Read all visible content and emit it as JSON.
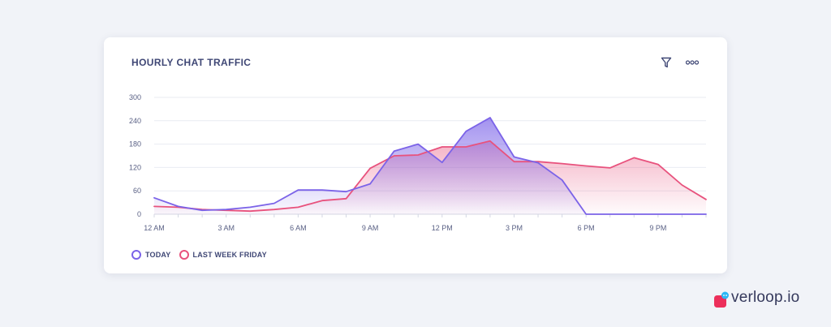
{
  "card": {
    "title": "HOURLY CHAT TRAFFIC",
    "toolbar": {
      "filter_icon": "filter-icon",
      "more_icon": "more-horizontal-icon"
    }
  },
  "chart_data": {
    "type": "area",
    "title": "HOURLY CHAT TRAFFIC",
    "xlabel": "",
    "ylabel": "",
    "ylim": [
      0,
      300
    ],
    "xlim": [
      0,
      23
    ],
    "y_ticks": [
      0,
      60,
      120,
      180,
      240,
      300
    ],
    "x_ticks": [
      {
        "x": 0,
        "label": "12 AM"
      },
      {
        "x": 3,
        "label": "3 AM"
      },
      {
        "x": 6,
        "label": "6 AM"
      },
      {
        "x": 9,
        "label": "9 AM"
      },
      {
        "x": 12,
        "label": "12 PM"
      },
      {
        "x": 15,
        "label": "3 PM"
      },
      {
        "x": 18,
        "label": "6 PM"
      },
      {
        "x": 21,
        "label": "9 PM"
      }
    ],
    "x": [
      0,
      1,
      2,
      3,
      4,
      5,
      6,
      7,
      8,
      9,
      10,
      11,
      12,
      13,
      14,
      15,
      16,
      17,
      18,
      19,
      20,
      21,
      22,
      23
    ],
    "grid": true,
    "legend_position": "bottom-left",
    "series": [
      {
        "name": "LAST WEEK FRIDAY",
        "color": "#e8527d",
        "values": [
          20,
          18,
          12,
          10,
          8,
          12,
          18,
          35,
          40,
          118,
          150,
          152,
          173,
          173,
          188,
          135,
          135,
          130,
          124,
          119,
          145,
          128,
          75,
          38
        ]
      },
      {
        "name": "TODAY",
        "color": "#7b63e8",
        "values": [
          42,
          20,
          10,
          12,
          18,
          28,
          62,
          62,
          58,
          78,
          162,
          180,
          133,
          213,
          248,
          147,
          132,
          88,
          0,
          0,
          0,
          0,
          0,
          0
        ]
      }
    ]
  },
  "legend": [
    {
      "label": "TODAY",
      "color": "#7b63e8"
    },
    {
      "label": "LAST WEEK FRIDAY",
      "color": "#e8527d"
    }
  ],
  "brand": {
    "name": "verloop.io",
    "logo_color": "#ec2f5b",
    "badge_color": "#2ab7f5"
  }
}
